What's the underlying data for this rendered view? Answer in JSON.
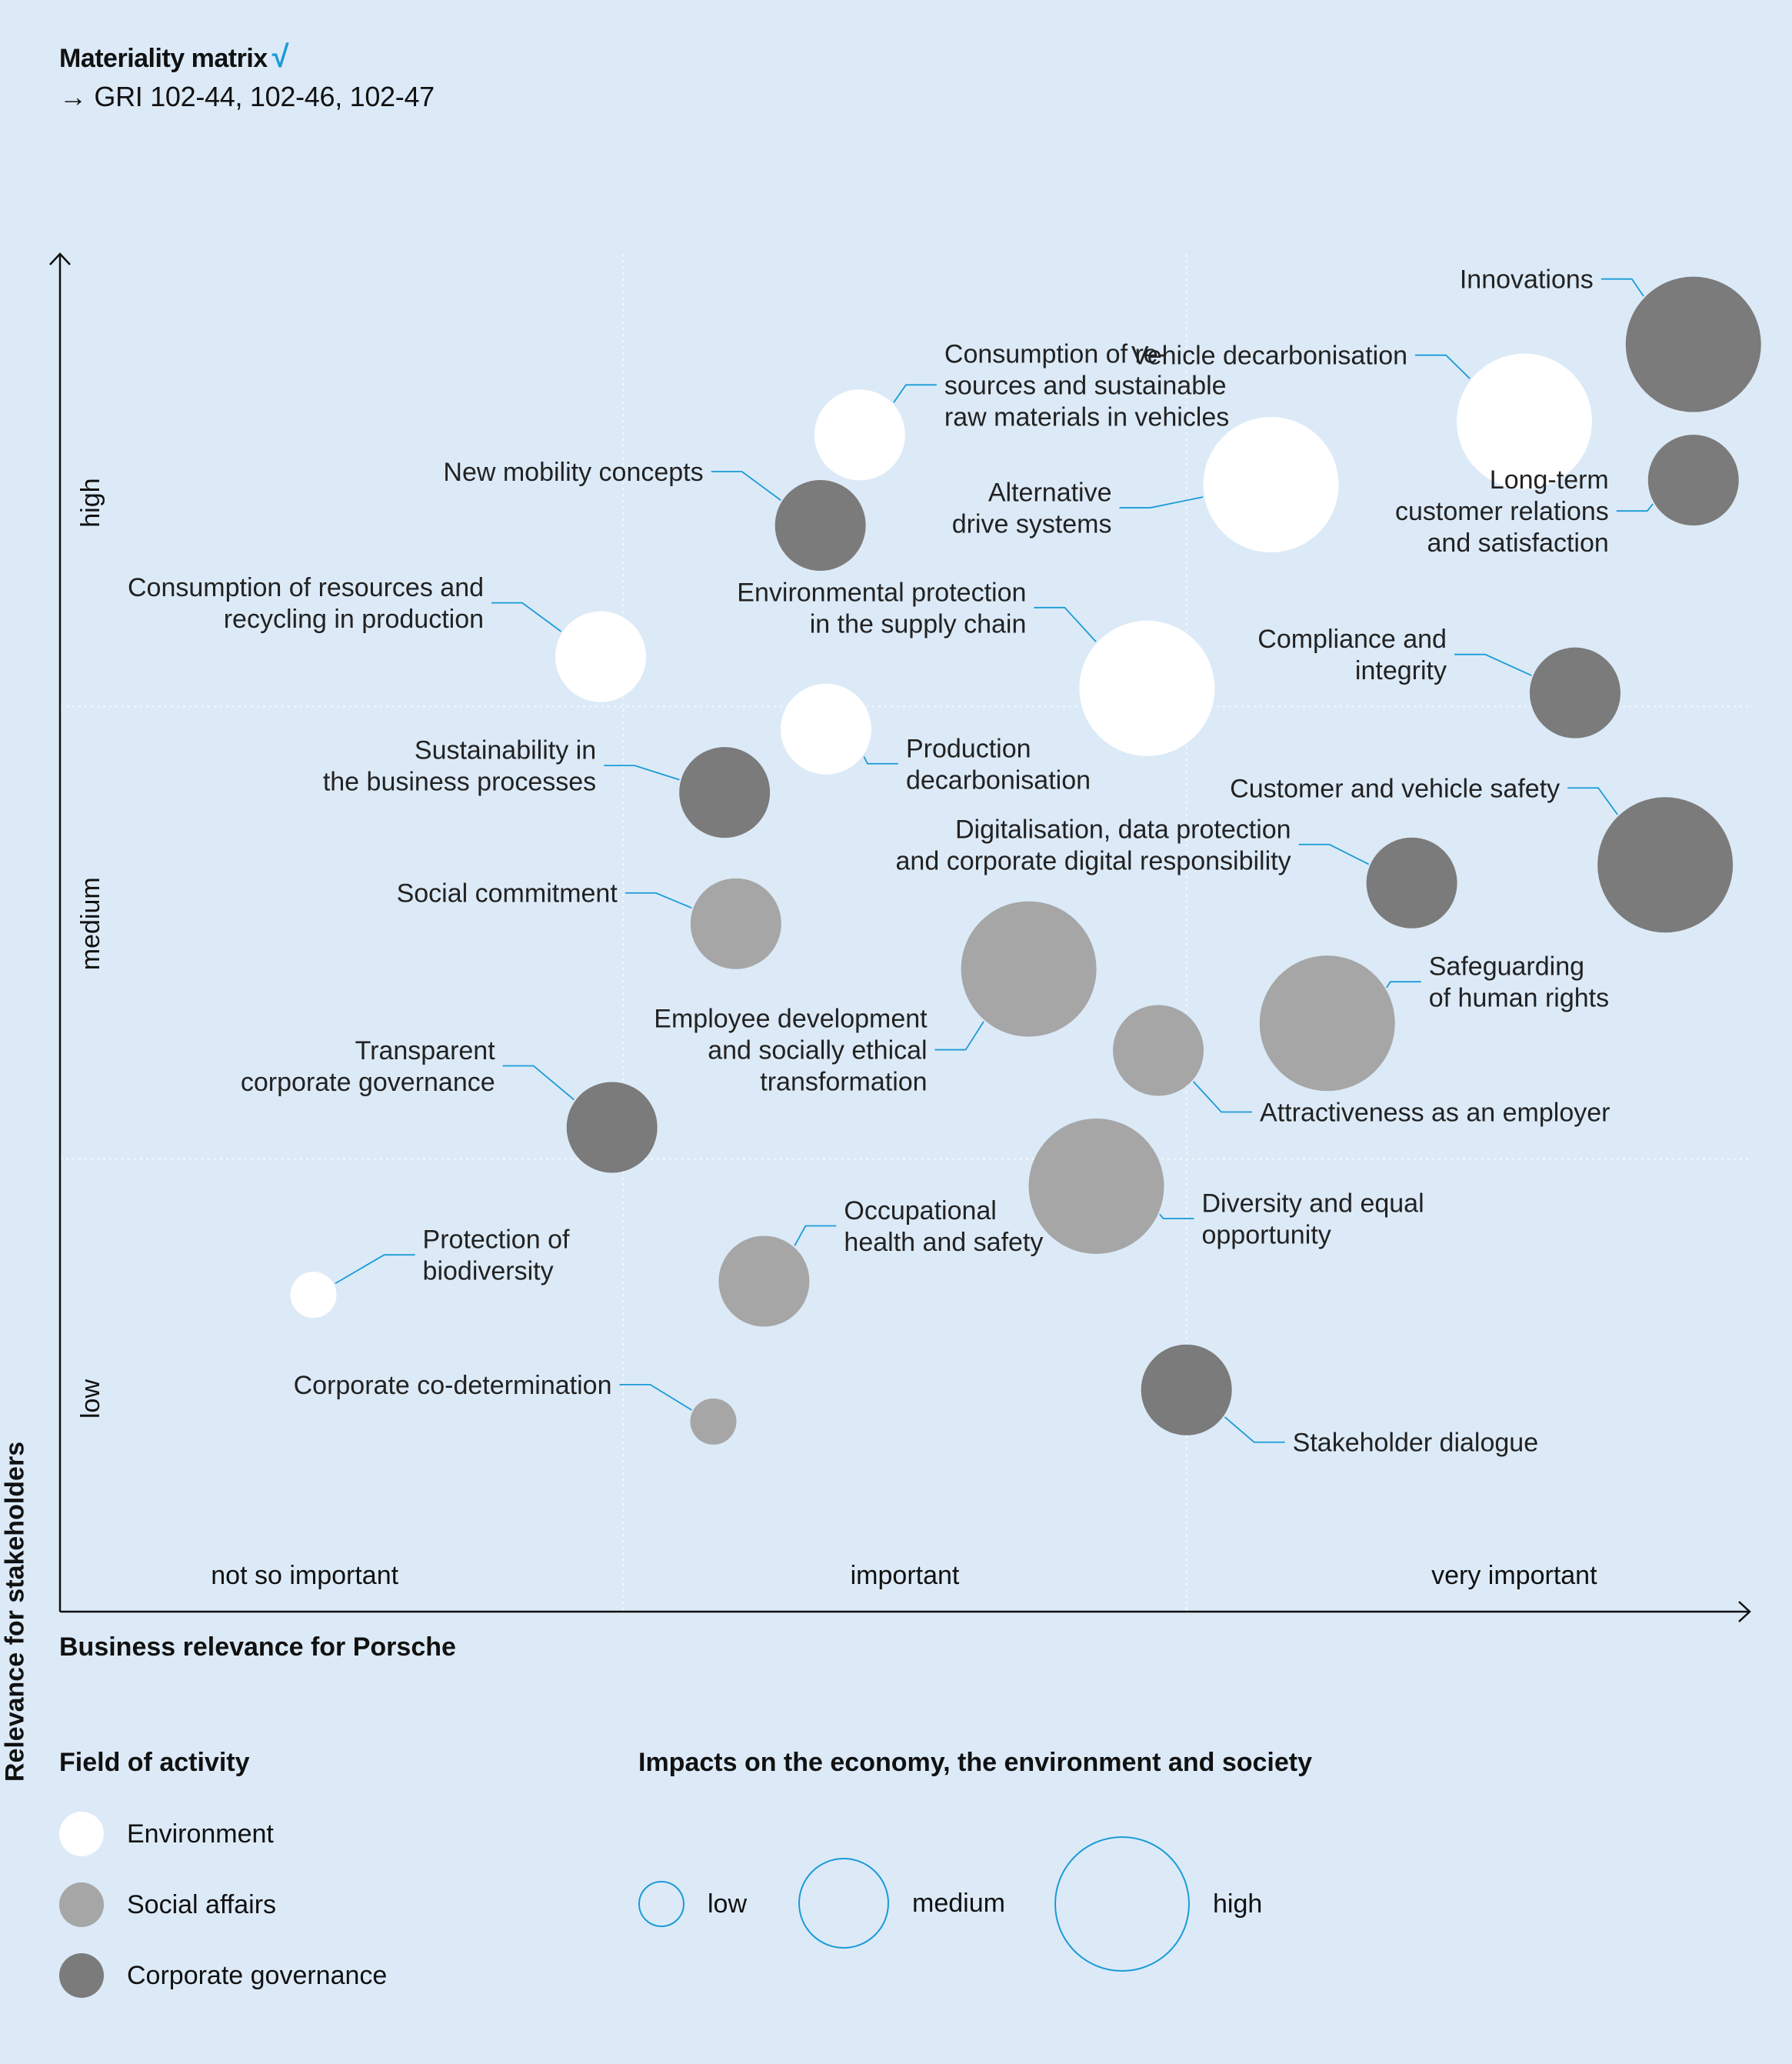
{
  "header": {
    "title": "Materiality matrix",
    "check": "√",
    "reference": "→ GRI 102-44, 102-46, 102-47"
  },
  "chart_data": {
    "type": "scatter",
    "title": "Materiality matrix",
    "xlabel": "Business relevance for Porsche",
    "ylabel": "Relevance for stakeholders",
    "x_tick_labels": [
      "not so important",
      "important",
      "very important"
    ],
    "y_tick_labels": [
      "low",
      "medium",
      "high"
    ],
    "xlim": [
      0,
      3
    ],
    "ylim": [
      0,
      3
    ],
    "grid": true,
    "colors": {
      "Environment": "#ffffff",
      "Social affairs": "#a6a6a6",
      "Corporate governance": "#7b7b7b",
      "leader": "#1a9bd7",
      "grid": "#f4f8fc"
    },
    "points": [
      {
        "label": "Innovations",
        "field": "Corporate governance",
        "impact": "high",
        "x": 2.9,
        "y": 2.8
      },
      {
        "label": "Vehicle decarbonisation",
        "field": "Environment",
        "impact": "high",
        "x": 2.6,
        "y": 2.63
      },
      {
        "label": "Consumption of re- sources and sustainable raw materials in vehicles",
        "field": "Environment",
        "impact": "medium",
        "x": 1.42,
        "y": 2.6
      },
      {
        "label": "Long-term customer relations and satisfaction",
        "field": "Corporate governance",
        "impact": "medium",
        "x": 2.9,
        "y": 2.5
      },
      {
        "label": "New mobility concepts",
        "field": "Corporate governance",
        "impact": "medium",
        "x": 1.35,
        "y": 2.4
      },
      {
        "label": "Alternative drive systems",
        "field": "Environment",
        "impact": "high",
        "x": 2.15,
        "y": 2.49
      },
      {
        "label": "Consumption of resources and recycling in production",
        "field": "Environment",
        "impact": "medium",
        "x": 0.96,
        "y": 2.11
      },
      {
        "label": "Environmental protection in the supply chain",
        "field": "Environment",
        "impact": "high",
        "x": 1.93,
        "y": 2.04
      },
      {
        "label": "Compliance and integrity",
        "field": "Corporate governance",
        "impact": "medium",
        "x": 2.69,
        "y": 2.03
      },
      {
        "label": "Production decarbonisation",
        "field": "Environment",
        "impact": "medium",
        "x": 1.36,
        "y": 1.95
      },
      {
        "label": "Sustainability in the business processes",
        "field": "Corporate governance",
        "impact": "medium",
        "x": 1.18,
        "y": 1.81
      },
      {
        "label": "Customer and vehicle safety",
        "field": "Corporate governance",
        "impact": "high",
        "x": 2.85,
        "y": 1.65
      },
      {
        "label": "Digitalisation, data protection and corporate digital responsibility",
        "field": "Corporate governance",
        "impact": "medium",
        "x": 2.4,
        "y": 1.61
      },
      {
        "label": "Social commitment",
        "field": "Social affairs",
        "impact": "medium",
        "x": 1.2,
        "y": 1.52
      },
      {
        "label": "Employee development and socially ethical transformation",
        "field": "Social affairs",
        "impact": "high",
        "x": 1.72,
        "y": 1.42
      },
      {
        "label": "Safeguarding of human rights",
        "field": "Social affairs",
        "impact": "high",
        "x": 2.25,
        "y": 1.3
      },
      {
        "label": "Attractiveness as an employer",
        "field": "Social affairs",
        "impact": "medium",
        "x": 1.95,
        "y": 1.24
      },
      {
        "label": "Transparent corporate governance",
        "field": "Corporate governance",
        "impact": "medium",
        "x": 0.98,
        "y": 1.07
      },
      {
        "label": "Diversity and equal opportunity",
        "field": "Social affairs",
        "impact": "high",
        "x": 1.84,
        "y": 0.94
      },
      {
        "label": "Occupational health and safety",
        "field": "Social affairs",
        "impact": "medium",
        "x": 1.25,
        "y": 0.73
      },
      {
        "label": "Protection of biodiversity",
        "field": "Environment",
        "impact": "low",
        "x": 0.45,
        "y": 0.7
      },
      {
        "label": "Stakeholder dialogue",
        "field": "Corporate governance",
        "impact": "medium",
        "x": 2.0,
        "y": 0.49
      },
      {
        "label": "Corporate co-determination",
        "field": "Social affairs",
        "impact": "low",
        "x": 1.16,
        "y": 0.42
      }
    ]
  },
  "legend": {
    "field_title": "Field of activity",
    "fields": [
      {
        "label": "Environment",
        "color": "#ffffff"
      },
      {
        "label": "Social affairs",
        "color": "#a6a6a6"
      },
      {
        "label": "Corporate governance",
        "color": "#7b7b7b"
      }
    ],
    "impact_title": "Impacts on the economy, the environment and society",
    "impacts": [
      {
        "label": "low"
      },
      {
        "label": "medium"
      },
      {
        "label": "high"
      }
    ]
  }
}
